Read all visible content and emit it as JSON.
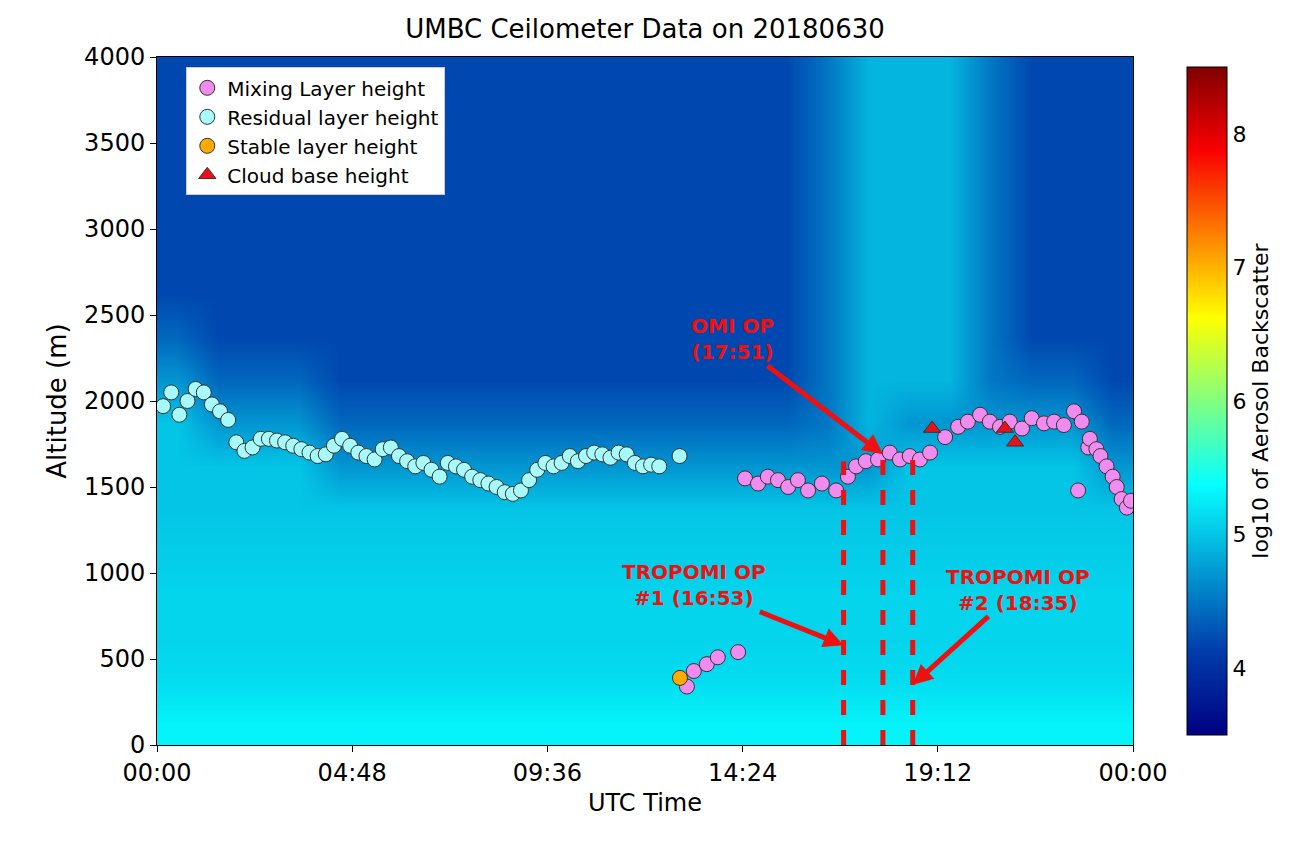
{
  "chart_data": {
    "type": "heatmap",
    "title": "UMBC Ceilometer Data on 20180630",
    "x_label": "UTC Time",
    "y_label": "Altitude (m)",
    "xlim": [
      0,
      24
    ],
    "xticks": [
      {
        "value": 0,
        "label": "00:00"
      },
      {
        "value": 4.8,
        "label": "04:48"
      },
      {
        "value": 9.6,
        "label": "09:36"
      },
      {
        "value": 14.4,
        "label": "14:24"
      },
      {
        "value": 19.2,
        "label": "19:12"
      },
      {
        "value": 24,
        "label": "00:00"
      }
    ],
    "ylim": [
      0,
      4000
    ],
    "yticks": [
      0,
      500,
      1000,
      1500,
      2000,
      2500,
      3000,
      3500,
      4000
    ],
    "grid": false,
    "legend": "upper left",
    "heatmap": {
      "x": [
        0.5,
        1.5,
        2.5,
        3.5,
        4.5,
        5.5,
        6.5,
        7.5,
        8.5,
        9.5,
        10.5,
        11.5,
        12.5,
        13.5,
        14.5,
        15.5,
        16.5,
        17.5,
        18.5,
        19.5,
        20.5,
        21.5,
        22.5,
        23.5
      ],
      "y": [
        125,
        375,
        625,
        875,
        1125,
        1375,
        1625,
        1875,
        2125,
        2375,
        2625,
        2875,
        3125,
        3375,
        3625,
        3875
      ],
      "z": [
        [
          5.3,
          5.3,
          5.3,
          5.3,
          5.3,
          5.3,
          5.3,
          5.3,
          5.3,
          5.3,
          5.3,
          5.3,
          5.3,
          5.3,
          5.3,
          5.3,
          5.3,
          5.3,
          5.3,
          5.3,
          5.3,
          5.3,
          5.3,
          5.3
        ],
        [
          5.15,
          5.15,
          5.15,
          5.15,
          5.15,
          5.15,
          5.15,
          5.15,
          5.15,
          5.15,
          5.15,
          5.15,
          5.15,
          5.15,
          5.15,
          5.15,
          5.15,
          5.15,
          5.15,
          5.15,
          5.15,
          5.15,
          5.15,
          5.15
        ],
        [
          5.1,
          5.1,
          5.1,
          5.1,
          5.1,
          5.1,
          5.1,
          5.1,
          5.1,
          5.1,
          5.1,
          5.1,
          5.1,
          5.1,
          5.1,
          5.1,
          5.1,
          5.1,
          5.1,
          5.1,
          5.1,
          5.1,
          5.1,
          5.1
        ],
        [
          5.1,
          5.1,
          5.1,
          5.1,
          5.1,
          5.1,
          5.1,
          5.1,
          5.1,
          5.1,
          5.1,
          5.1,
          5.1,
          5.1,
          5.1,
          5.1,
          5.1,
          5.1,
          5.1,
          5.1,
          5.1,
          5.1,
          5.1,
          5.1
        ],
        [
          5.05,
          5.05,
          5.05,
          5.05,
          5.05,
          5.05,
          5.05,
          5.05,
          5.05,
          5.05,
          5.05,
          5.05,
          5.05,
          5.05,
          5.05,
          5.05,
          5.05,
          5.05,
          5.05,
          5.05,
          5.05,
          5.05,
          5.05,
          5.05
        ],
        [
          5.0,
          5.0,
          5.0,
          5.0,
          5.0,
          5.0,
          5.0,
          5.0,
          5.0,
          5.0,
          5.0,
          5.0,
          5.0,
          5.0,
          5.0,
          5.0,
          5.0,
          5.0,
          5.0,
          5.0,
          5.0,
          5.0,
          5.0,
          5.0
        ],
        [
          5.0,
          5.0,
          5.0,
          5.0,
          4.7,
          4.7,
          4.7,
          4.7,
          4.7,
          4.7,
          4.7,
          4.7,
          4.7,
          4.7,
          4.7,
          4.7,
          4.7,
          4.7,
          5.0,
          5.0,
          5.0,
          5.0,
          5.0,
          4.7
        ],
        [
          5.0,
          4.7,
          4.7,
          4.7,
          4.4,
          4.4,
          4.4,
          4.4,
          4.4,
          4.4,
          4.4,
          4.4,
          4.4,
          4.4,
          4.4,
          4.4,
          4.5,
          4.9,
          4.7,
          4.7,
          4.7,
          4.7,
          4.7,
          4.4
        ],
        [
          4.7,
          4.4,
          4.4,
          4.4,
          4.2,
          4.2,
          4.2,
          4.2,
          4.2,
          4.2,
          4.2,
          4.2,
          4.2,
          4.2,
          4.2,
          4.2,
          4.5,
          4.9,
          4.9,
          4.9,
          4.5,
          4.4,
          4.4,
          4.2
        ],
        [
          4.4,
          4.2,
          4.2,
          4.2,
          4.2,
          4.2,
          4.2,
          4.2,
          4.2,
          4.2,
          4.2,
          4.2,
          4.2,
          4.2,
          4.2,
          4.2,
          4.5,
          4.9,
          4.9,
          4.9,
          4.5,
          4.2,
          4.2,
          4.2
        ],
        [
          4.2,
          4.2,
          4.2,
          4.2,
          4.2,
          4.2,
          4.2,
          4.2,
          4.2,
          4.2,
          4.2,
          4.2,
          4.2,
          4.2,
          4.2,
          4.2,
          4.5,
          4.9,
          4.9,
          4.9,
          4.5,
          4.2,
          4.2,
          4.2
        ],
        [
          4.2,
          4.2,
          4.2,
          4.2,
          4.2,
          4.2,
          4.2,
          4.2,
          4.2,
          4.2,
          4.2,
          4.2,
          4.2,
          4.2,
          4.2,
          4.2,
          4.5,
          4.9,
          4.9,
          4.9,
          4.5,
          4.2,
          4.2,
          4.2
        ],
        [
          4.2,
          4.2,
          4.2,
          4.2,
          4.2,
          4.2,
          4.2,
          4.2,
          4.2,
          4.2,
          4.2,
          4.2,
          4.2,
          4.2,
          4.2,
          4.2,
          4.5,
          4.9,
          4.9,
          4.9,
          4.5,
          4.2,
          4.2,
          4.2
        ],
        [
          4.2,
          4.2,
          4.2,
          4.2,
          4.2,
          4.2,
          4.2,
          4.2,
          4.2,
          4.2,
          4.2,
          4.2,
          4.2,
          4.2,
          4.2,
          4.2,
          4.5,
          4.9,
          4.9,
          4.9,
          4.5,
          4.2,
          4.2,
          4.2
        ],
        [
          4.2,
          4.2,
          4.2,
          4.2,
          4.2,
          4.2,
          4.2,
          4.2,
          4.2,
          4.2,
          4.2,
          4.2,
          4.2,
          4.2,
          4.2,
          4.2,
          4.5,
          4.9,
          4.9,
          4.9,
          4.5,
          4.2,
          4.2,
          4.2
        ],
        [
          4.2,
          4.2,
          4.2,
          4.2,
          4.2,
          4.2,
          4.2,
          4.2,
          4.2,
          4.2,
          4.2,
          4.2,
          4.2,
          4.2,
          4.2,
          4.2,
          4.5,
          4.9,
          4.9,
          4.9,
          4.5,
          4.2,
          4.2,
          4.2
        ]
      ],
      "colorbar": {
        "title": "log10 of Aerosol Backscatter",
        "range": [
          3.5,
          8.5
        ],
        "ticks": [
          4,
          5,
          6,
          7,
          8
        ]
      }
    },
    "series": [
      {
        "name": "Mixing Layer height",
        "type": "scatter",
        "marker": "circle",
        "color": "#f08cf0",
        "x": [
          13.03,
          13.2,
          13.52,
          13.79,
          14.29,
          14.46,
          14.78,
          15.02,
          15.27,
          15.52,
          15.76,
          16.01,
          16.35,
          16.7,
          16.99,
          17.19,
          17.43,
          17.73,
          18.02,
          18.27,
          18.51,
          18.76,
          19.01,
          19.38,
          19.7,
          19.94,
          20.24,
          20.48,
          20.73,
          20.97,
          21.27,
          21.51,
          21.81,
          22.06,
          22.3,
          22.55,
          22.65,
          22.74,
          22.9,
          22.94,
          23.1,
          23.2,
          23.35,
          23.5,
          23.6,
          23.72,
          23.85,
          23.95
        ],
        "y": [
          340,
          430,
          470,
          510,
          540,
          1550,
          1520,
          1560,
          1540,
          1500,
          1540,
          1480,
          1520,
          1480,
          1560,
          1620,
          1650,
          1660,
          1700,
          1660,
          1680,
          1660,
          1700,
          1790,
          1850,
          1880,
          1920,
          1880,
          1850,
          1880,
          1840,
          1900,
          1870,
          1880,
          1860,
          1940,
          1480,
          1880,
          1730,
          1780,
          1720,
          1680,
          1620,
          1560,
          1500,
          1430,
          1380,
          1420
        ]
      },
      {
        "name": "Residual layer height",
        "type": "scatter",
        "marker": "circle",
        "color": "#a8fafa",
        "x": [
          0.15,
          0.35,
          0.55,
          0.75,
          0.95,
          1.15,
          1.35,
          1.55,
          1.75,
          1.95,
          2.15,
          2.35,
          2.55,
          2.75,
          2.95,
          3.15,
          3.35,
          3.55,
          3.75,
          3.95,
          4.15,
          4.35,
          4.55,
          4.75,
          4.95,
          5.15,
          5.35,
          5.55,
          5.75,
          5.95,
          6.15,
          6.35,
          6.55,
          6.75,
          6.95,
          7.15,
          7.35,
          7.55,
          7.75,
          7.95,
          8.15,
          8.35,
          8.55,
          8.75,
          8.95,
          9.15,
          9.35,
          9.55,
          9.75,
          9.95,
          10.15,
          10.35,
          10.55,
          10.75,
          10.95,
          11.15,
          11.35,
          11.55,
          11.75,
          11.95,
          12.15,
          12.35,
          12.85
        ],
        "y": [
          1970,
          2050,
          1920,
          2000,
          2070,
          2050,
          1980,
          1940,
          1890,
          1760,
          1710,
          1730,
          1780,
          1780,
          1770,
          1760,
          1740,
          1720,
          1700,
          1680,
          1690,
          1740,
          1780,
          1740,
          1700,
          1680,
          1660,
          1720,
          1730,
          1680,
          1650,
          1620,
          1640,
          1600,
          1560,
          1640,
          1620,
          1600,
          1560,
          1540,
          1520,
          1500,
          1470,
          1460,
          1480,
          1540,
          1600,
          1640,
          1620,
          1640,
          1680,
          1650,
          1680,
          1700,
          1690,
          1670,
          1700,
          1690,
          1640,
          1620,
          1630,
          1620,
          1680
        ]
      },
      {
        "name": "Stable layer height",
        "type": "scatter",
        "marker": "circle",
        "color": "#ffaa00",
        "x": [
          12.86
        ],
        "y": [
          390
        ]
      },
      {
        "name": "Cloud base height",
        "type": "scatter",
        "marker": "triangle-up",
        "color": "#e8111a",
        "x": [
          19.06,
          20.85,
          21.1
        ],
        "y": [
          1840,
          1840,
          1760
        ]
      }
    ],
    "vlines": [
      {
        "x": 16.883,
        "ymax": 1650,
        "color": "#ee1111",
        "line_style": "dash"
      },
      {
        "x": 17.85,
        "ymax": 1690,
        "color": "#ee1111",
        "line_style": "dash"
      },
      {
        "x": 18.583,
        "ymax": 1700,
        "color": "#ee1111",
        "line_style": "dash"
      }
    ],
    "annotations": [
      {
        "text": [
          "OMI OP",
          "(17:51)"
        ],
        "x": 17.85,
        "y": 1690,
        "color": "#ee1111"
      },
      {
        "text": [
          "TROPOMI OP",
          "#1 (16:53)"
        ],
        "x": 16.883,
        "y": 580,
        "color": "#ee1111"
      },
      {
        "text": [
          "TROPOMI OP",
          "#2 (18:35)"
        ],
        "x": 18.583,
        "y": 350,
        "color": "#ee1111"
      }
    ]
  }
}
